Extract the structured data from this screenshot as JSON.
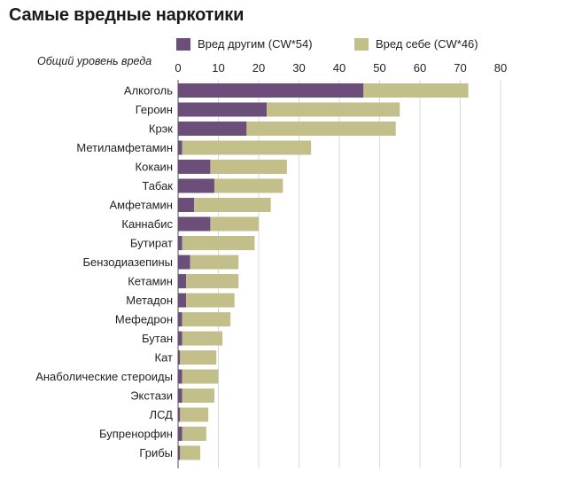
{
  "title": "Самые вредные наркотики",
  "legend": {
    "others_label": "Вред другим (CW*54)",
    "self_label": "Вред себе (CW*46)"
  },
  "axis_caption": "Общий уровень вреда",
  "colors": {
    "others": "#6b4f7a",
    "self": "#c3bf8a",
    "grid": "#d8d8d8",
    "axis": "#555555"
  },
  "chart_data": {
    "type": "bar",
    "orientation": "horizontal",
    "stacked": true,
    "title": "Самые вредные наркотики",
    "xlabel": "Общий уровень вреда",
    "ylabel": "",
    "xlim": [
      0,
      80
    ],
    "xticks": [
      0,
      10,
      20,
      30,
      40,
      50,
      60,
      70,
      80
    ],
    "grid": true,
    "legend_position": "top",
    "categories": [
      "Алкоголь",
      "Героин",
      "Крэк",
      "Метиламфетамин",
      "Кокаин",
      "Табак",
      "Амфетамин",
      "Каннабис",
      "Бутират",
      "Бензодиазепины",
      "Кетамин",
      "Метадон",
      "Мефедрон",
      "Бутан",
      "Кат",
      "Анаболические стероиды",
      "Экстази",
      "ЛСД",
      "Бупренорфин",
      "Грибы"
    ],
    "series": [
      {
        "name": "Вред другим (CW*54)",
        "values": [
          46,
          22,
          17,
          1,
          8,
          9,
          4,
          8,
          1,
          3,
          2,
          2,
          1,
          1,
          0.5,
          1,
          1,
          0.5,
          1,
          0.5
        ]
      },
      {
        "name": "Вред себе (CW*46)",
        "values": [
          26,
          33,
          37,
          32,
          19,
          17,
          19,
          12,
          18,
          12,
          13,
          12,
          12,
          10,
          9,
          9,
          8,
          7,
          6,
          5
        ]
      }
    ]
  }
}
